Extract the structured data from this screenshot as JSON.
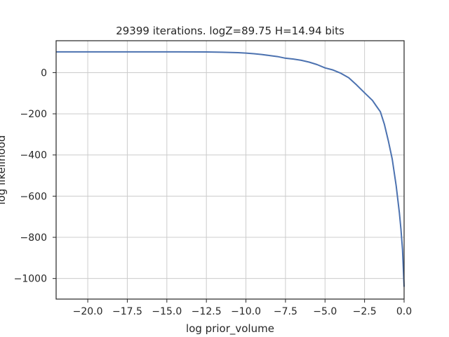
{
  "chart_data": {
    "type": "line",
    "title": "29399 iterations. logZ=89.75 H=14.94 bits",
    "xlabel": "log prior_volume",
    "ylabel": "log likelihood",
    "xlim": [
      -22,
      0
    ],
    "ylim": [
      -1100,
      155
    ],
    "grid": true,
    "x_ticks": [
      -20.0,
      -17.5,
      -15.0,
      -12.5,
      -10.0,
      -7.5,
      -5.0,
      -2.5,
      0.0
    ],
    "x_tick_labels": [
      "−20.0",
      "−17.5",
      "−15.0",
      "−12.5",
      "−10.0",
      "−7.5",
      "−5.0",
      "−2.5",
      "0.0"
    ],
    "y_ticks": [
      0,
      -200,
      -400,
      -600,
      -800,
      -1000
    ],
    "y_tick_labels": [
      "0",
      "−200",
      "−400",
      "−600",
      "−800",
      "−1000"
    ],
    "series": [
      {
        "color": "#4c72b0",
        "x": [
          -22.0,
          -20.0,
          -17.5,
          -15.0,
          -12.5,
          -11.5,
          -10.5,
          -10.0,
          -9.5,
          -9.0,
          -8.5,
          -8.0,
          -7.5,
          -7.0,
          -6.5,
          -6.0,
          -5.5,
          -5.0,
          -4.5,
          -4.0,
          -3.5,
          -3.0,
          -2.5,
          -2.0,
          -1.75,
          -1.5,
          -1.25,
          -1.0,
          -0.75,
          -0.5,
          -0.3,
          -0.2,
          -0.1,
          -0.05,
          0.0
        ],
        "y": [
          101,
          101,
          101,
          101,
          100.5,
          99,
          97,
          95,
          92,
          88,
          83,
          78,
          70,
          66,
          60,
          51,
          39,
          23,
          13,
          -3,
          -25,
          -60,
          -98,
          -135,
          -163,
          -190,
          -250,
          -330,
          -420,
          -550,
          -680,
          -760,
          -860,
          -950,
          -1040
        ]
      }
    ]
  }
}
